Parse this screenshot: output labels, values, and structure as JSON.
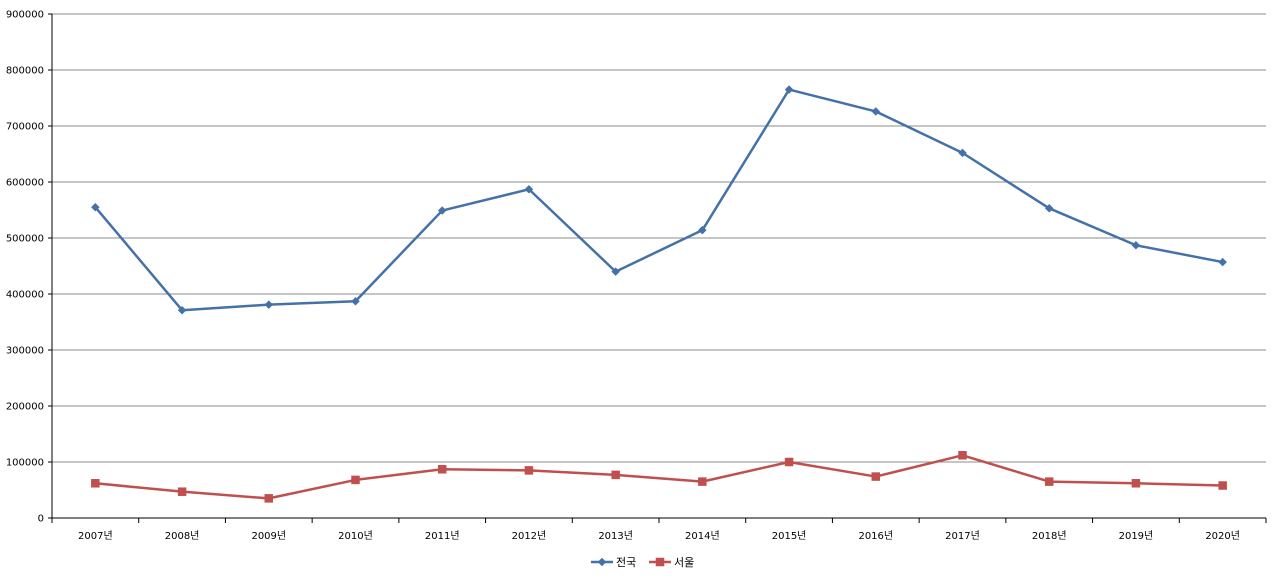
{
  "chart_data": {
    "type": "line",
    "categories": [
      "2007년",
      "2008년",
      "2009년",
      "2010년",
      "2011년",
      "2012년",
      "2013년",
      "2014년",
      "2015년",
      "2016년",
      "2017년",
      "2018년",
      "2019년",
      "2020년"
    ],
    "series": [
      {
        "name": "전국",
        "color": "#4472A8",
        "marker": "diamond",
        "values": [
          555000,
          371000,
          381000,
          387000,
          549000,
          587000,
          440000,
          514000,
          765000,
          726000,
          652000,
          553000,
          487000,
          457000
        ]
      },
      {
        "name": "서울",
        "color": "#C0504D",
        "marker": "square",
        "values": [
          62000,
          47000,
          35000,
          68000,
          87000,
          85000,
          77000,
          65000,
          100000,
          74000,
          112000,
          65000,
          62000,
          58000
        ]
      }
    ],
    "ylim": [
      0,
      900000
    ],
    "yticks": [
      "0",
      "100000",
      "200000",
      "300000",
      "400000",
      "500000",
      "600000",
      "700000",
      "800000",
      "900000"
    ],
    "grid": true,
    "legend_position": "bottom-center"
  }
}
